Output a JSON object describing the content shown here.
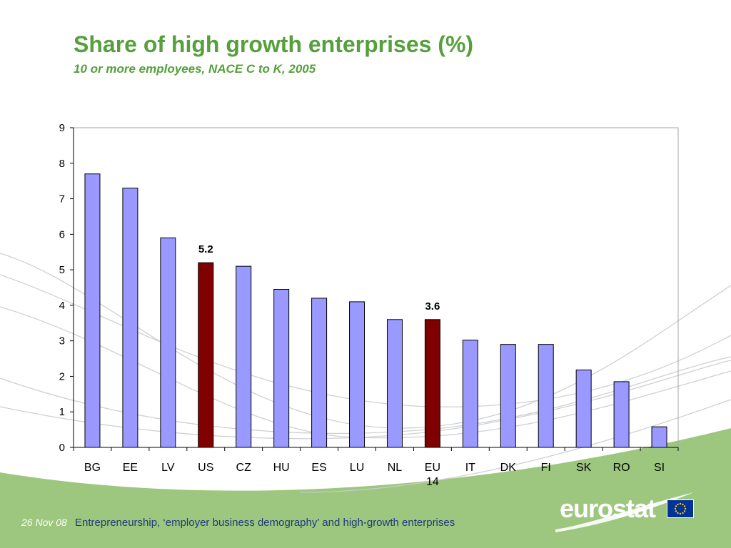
{
  "slide": {
    "title": "Share of high growth enterprises (%)",
    "subtitle": "10 or more employees, NACE C to K, 2005"
  },
  "footer": {
    "date": "26 Nov 08",
    "text": "Entrepreneurship, ‘employer business demography’ and high-growth enterprises",
    "logo_text": "eurostat"
  },
  "colors": {
    "title": "#55a03c",
    "default_bar": "#9999ff",
    "highlight_bar": "#800000",
    "footer_band": "#9dc77f"
  },
  "icons": {
    "logo": "eurostat-logo",
    "flag": "eu-flag-icon"
  },
  "chart_data": {
    "type": "bar",
    "categories": [
      "BG",
      "EE",
      "LV",
      "US",
      "CZ",
      "HU",
      "ES",
      "LU",
      "NL",
      "EU 14",
      "IT",
      "DK",
      "FI",
      "SK",
      "RO",
      "SI"
    ],
    "values": [
      7.7,
      7.3,
      5.9,
      5.2,
      5.1,
      4.45,
      4.2,
      4.1,
      3.6,
      3.6,
      3.02,
      2.9,
      2.9,
      2.18,
      1.85,
      0.58
    ],
    "highlighted": [
      "US",
      "EU 14"
    ],
    "data_labels": [
      {
        "category": "US",
        "text": "5.2"
      },
      {
        "category": "EU 14",
        "text": "3.6"
      }
    ],
    "yticks": [
      "0",
      "1",
      "2",
      "3",
      "4",
      "5",
      "6",
      "7",
      "8",
      "9"
    ],
    "ylim": [
      0,
      9
    ],
    "grid": false,
    "legend": "none"
  }
}
